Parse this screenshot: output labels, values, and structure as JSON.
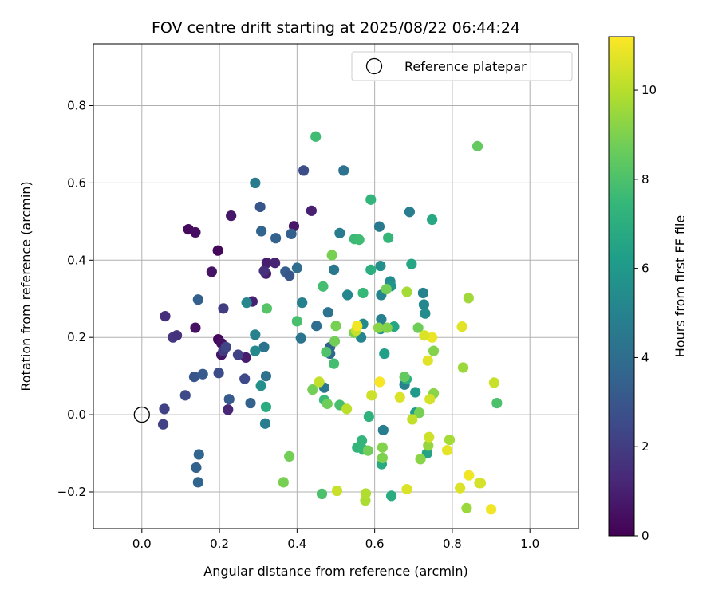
{
  "chart_data": {
    "type": "scatter",
    "title": "FOV centre drift starting at 2025/08/22 06:44:24",
    "xlabel": "Angular distance from reference (arcmin)",
    "ylabel": "Rotation from reference (arcmin)",
    "xlim": [
      -0.125,
      1.125
    ],
    "ylim": [
      -0.295,
      0.96
    ],
    "xticks": [
      0.0,
      0.2,
      0.4,
      0.6,
      0.8,
      1.0
    ],
    "xtick_labels": [
      "0.0",
      "0.2",
      "0.4",
      "0.6",
      "0.8",
      "1.0"
    ],
    "yticks": [
      -0.2,
      0.0,
      0.2,
      0.4,
      0.6,
      0.8
    ],
    "ytick_labels": [
      "−0.2",
      "0.0",
      "0.2",
      "0.4",
      "0.6",
      "0.8"
    ],
    "grid": true,
    "legend": {
      "placement": "top-right",
      "label": "Reference platepar"
    },
    "reference_point": {
      "x": 0.0,
      "y": 0.0
    },
    "colorbar": {
      "label": "Hours from first FF file",
      "colormap": "viridis",
      "range": [
        0,
        11.2
      ],
      "ticks": [
        0,
        2,
        4,
        6,
        8,
        10
      ],
      "tick_labels": [
        "0",
        "2",
        "4",
        "6",
        "8",
        "10"
      ]
    },
    "series": [
      {
        "points": [
          [
            0.06,
            0.255,
            1.5
          ],
          [
            0.08,
            0.2,
            1.8
          ],
          [
            0.09,
            0.205,
            1.6
          ],
          [
            0.12,
            0.48,
            0.3
          ],
          [
            0.138,
            0.472,
            0.4
          ],
          [
            0.138,
            0.225,
            0.5
          ],
          [
            0.18,
            0.37,
            0.6
          ],
          [
            0.196,
            0.425,
            0.2
          ],
          [
            0.197,
            0.195,
            0.3
          ],
          [
            0.205,
            0.185,
            0.5
          ],
          [
            0.205,
            0.155,
            0.6
          ],
          [
            0.23,
            0.515,
            0.7
          ],
          [
            0.268,
            0.148,
            0.9
          ],
          [
            0.285,
            0.293,
            1.0
          ],
          [
            0.322,
            0.393,
            0.9
          ],
          [
            0.32,
            0.365,
            0.9
          ],
          [
            0.343,
            0.393,
            1.1
          ],
          [
            0.392,
            0.488,
            0.7
          ],
          [
            0.437,
            0.528,
            1.0
          ],
          [
            0.222,
            0.013,
            1.2
          ],
          [
            0.058,
            0.015,
            2.2
          ],
          [
            0.055,
            -0.025,
            2.2
          ],
          [
            0.112,
            0.05,
            2.5
          ],
          [
            0.135,
            0.098,
            3.0
          ],
          [
            0.157,
            0.105,
            3.2
          ],
          [
            0.198,
            0.108,
            2.6
          ],
          [
            0.21,
            0.275,
            2.0
          ],
          [
            0.21,
            0.165,
            1.9
          ],
          [
            0.217,
            0.175,
            2.3
          ],
          [
            0.248,
            0.155,
            2.2
          ],
          [
            0.265,
            0.093,
            2.5
          ],
          [
            0.315,
            0.372,
            1.5
          ],
          [
            0.145,
            0.298,
            3.4
          ],
          [
            0.14,
            -0.137,
            3.5
          ],
          [
            0.145,
            -0.175,
            3.6
          ],
          [
            0.147,
            -0.103,
            3.7
          ],
          [
            0.225,
            0.04,
            3.2
          ],
          [
            0.28,
            0.03,
            3.5
          ],
          [
            0.305,
            0.538,
            3.0
          ],
          [
            0.308,
            0.475,
            3.6
          ],
          [
            0.345,
            0.457,
            3.5
          ],
          [
            0.37,
            0.37,
            3.3
          ],
          [
            0.38,
            0.36,
            3.0
          ],
          [
            0.385,
            0.468,
            3.4
          ],
          [
            0.417,
            0.632,
            2.6
          ],
          [
            0.4,
            0.38,
            4.0
          ],
          [
            0.41,
            0.198,
            4.3
          ],
          [
            0.413,
            0.29,
            4.9
          ],
          [
            0.315,
            0.175,
            4.3
          ],
          [
            0.318,
            -0.023,
            4.8
          ],
          [
            0.292,
            0.6,
            4.7
          ],
          [
            0.292,
            0.207,
            5.0
          ],
          [
            0.292,
            0.165,
            5.3
          ],
          [
            0.27,
            0.29,
            5.2
          ],
          [
            0.307,
            0.075,
            5.6
          ],
          [
            0.32,
            0.1,
            4.2
          ],
          [
            0.45,
            0.23,
            4.0
          ],
          [
            0.47,
            0.07,
            4.5
          ],
          [
            0.48,
            0.265,
            4.2
          ],
          [
            0.485,
            0.175,
            3.5
          ],
          [
            0.485,
            0.158,
            3.7
          ],
          [
            0.495,
            0.375,
            4.5
          ],
          [
            0.51,
            0.47,
            4.7
          ],
          [
            0.52,
            0.632,
            4.2
          ],
          [
            0.53,
            0.31,
            5.2
          ],
          [
            0.565,
            0.2,
            5.1
          ],
          [
            0.57,
            0.235,
            5.3
          ],
          [
            0.612,
            0.487,
            4.6
          ],
          [
            0.617,
            0.247,
            4.9
          ],
          [
            0.617,
            0.31,
            5.1
          ],
          [
            0.622,
            -0.04,
            4.8
          ],
          [
            0.615,
            0.385,
            5.5
          ],
          [
            0.64,
            0.345,
            5.4
          ],
          [
            0.642,
            0.333,
            5.8
          ],
          [
            0.69,
            0.525,
            4.8
          ],
          [
            0.725,
            0.315,
            5.0
          ],
          [
            0.727,
            0.285,
            5.2
          ],
          [
            0.73,
            0.262,
            5.4
          ],
          [
            0.677,
            0.078,
            5.0
          ],
          [
            0.705,
            0.058,
            6.1
          ],
          [
            0.705,
            0.005,
            6.2
          ],
          [
            0.615,
            0.222,
            5.7
          ],
          [
            0.625,
            0.158,
            6.3
          ],
          [
            0.65,
            0.228,
            6.6
          ],
          [
            0.682,
            0.092,
            7.0
          ],
          [
            0.695,
            0.39,
            6.6
          ],
          [
            0.748,
            0.505,
            6.7
          ],
          [
            0.735,
            -0.1,
            6.5
          ],
          [
            0.59,
            0.557,
            7.3
          ],
          [
            0.59,
            0.375,
            7.0
          ],
          [
            0.618,
            -0.128,
            6.8
          ],
          [
            0.643,
            -0.21,
            6.9
          ],
          [
            0.585,
            -0.005,
            7.2
          ],
          [
            0.567,
            -0.067,
            7.3
          ],
          [
            0.555,
            -0.085,
            7.3
          ],
          [
            0.57,
            -0.09,
            7.4
          ],
          [
            0.57,
            0.315,
            7.5
          ],
          [
            0.548,
            0.455,
            7.6
          ],
          [
            0.56,
            0.453,
            7.7
          ],
          [
            0.635,
            0.458,
            7.4
          ],
          [
            0.32,
            0.02,
            6.9
          ],
          [
            0.448,
            0.72,
            7.7
          ],
          [
            0.467,
            0.332,
            7.8
          ],
          [
            0.47,
            0.038,
            7.6
          ],
          [
            0.495,
            0.132,
            7.8
          ],
          [
            0.51,
            0.025,
            7.9
          ],
          [
            0.475,
            0.162,
            8.1
          ],
          [
            0.464,
            -0.205,
            8.0
          ],
          [
            0.322,
            0.275,
            8.2
          ],
          [
            0.4,
            0.242,
            7.9
          ],
          [
            0.478,
            0.028,
            8.7
          ],
          [
            0.44,
            0.065,
            8.8
          ],
          [
            0.38,
            -0.108,
            8.8
          ],
          [
            0.365,
            -0.175,
            8.9
          ],
          [
            0.49,
            0.413,
            8.9
          ],
          [
            0.497,
            0.19,
            8.8
          ],
          [
            0.5,
            0.23,
            8.9
          ],
          [
            0.547,
            0.212,
            9.0
          ],
          [
            0.583,
            -0.093,
            8.8
          ],
          [
            0.62,
            -0.112,
            9.0
          ],
          [
            0.62,
            -0.085,
            9.1
          ],
          [
            0.61,
            0.225,
            9.2
          ],
          [
            0.632,
            0.225,
            9.1
          ],
          [
            0.63,
            0.325,
            8.8
          ],
          [
            0.683,
            0.318,
            9.7
          ],
          [
            0.677,
            0.098,
            8.5
          ],
          [
            0.712,
            0.225,
            8.7
          ],
          [
            0.715,
            0.005,
            8.9
          ],
          [
            0.718,
            -0.115,
            9.2
          ],
          [
            0.738,
            -0.08,
            9.4
          ],
          [
            0.752,
            0.165,
            9.1
          ],
          [
            0.752,
            0.055,
            9.2
          ],
          [
            0.828,
            0.122,
            9.5
          ],
          [
            0.842,
            0.302,
            9.6
          ],
          [
            0.837,
            -0.242,
            9.5
          ],
          [
            0.793,
            -0.065,
            9.7
          ],
          [
            0.865,
            0.695,
            8.5
          ],
          [
            0.915,
            0.03,
            8.0
          ],
          [
            0.576,
            -0.222,
            9.8
          ],
          [
            0.577,
            -0.204,
            9.9
          ],
          [
            0.528,
            0.015,
            10.1
          ],
          [
            0.503,
            -0.197,
            10.3
          ],
          [
            0.457,
            0.085,
            10.2
          ],
          [
            0.552,
            0.218,
            10.3
          ],
          [
            0.592,
            0.05,
            10.4
          ],
          [
            0.665,
            0.045,
            10.6
          ],
          [
            0.697,
            -0.012,
            10.2
          ],
          [
            0.737,
            0.14,
            10.7
          ],
          [
            0.748,
            0.2,
            10.9
          ],
          [
            0.728,
            0.205,
            10.6
          ],
          [
            0.742,
            0.04,
            10.5
          ],
          [
            0.74,
            -0.058,
            10.4
          ],
          [
            0.787,
            -0.092,
            10.8
          ],
          [
            0.82,
            -0.19,
            10.6
          ],
          [
            0.825,
            0.228,
            10.7
          ],
          [
            0.843,
            -0.157,
            11.0
          ],
          [
            0.87,
            -0.177,
            10.4
          ],
          [
            0.873,
            -0.177,
            10.5
          ],
          [
            0.908,
            0.083,
            10.3
          ],
          [
            0.9,
            -0.245,
            11.0
          ],
          [
            0.683,
            -0.193,
            10.6
          ],
          [
            0.555,
            0.23,
            11.0
          ],
          [
            0.613,
            0.085,
            11.1
          ]
        ]
      }
    ]
  },
  "colors": {
    "axis": "#000000",
    "grid": "#b0b0b0",
    "reference_marker": "#000000"
  }
}
